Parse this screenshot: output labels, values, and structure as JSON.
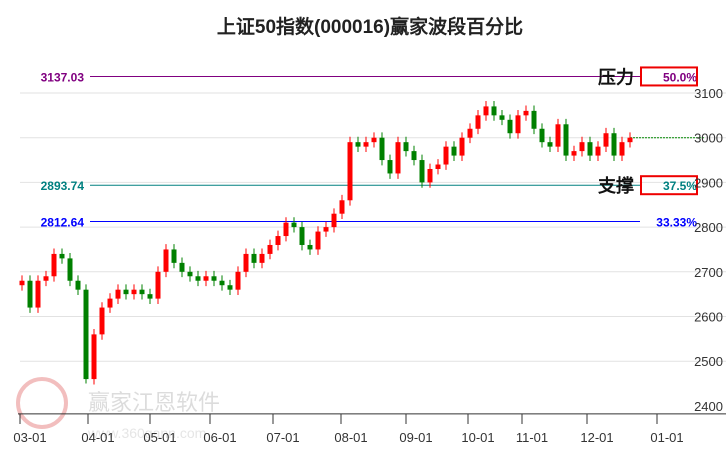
{
  "chart_data": {
    "type": "candlestick",
    "title": "上证50指数(000016)赢家波段百分比",
    "y_ticks": [
      3100,
      3000,
      2900,
      2800,
      2700,
      2600,
      2500,
      2400
    ],
    "ylim": [
      2400,
      3130
    ],
    "x_ticks": [
      "03-01",
      "04-01",
      "05-01",
      "06-01",
      "07-01",
      "08-01",
      "09-01",
      "10-01",
      "11-01",
      "12-01",
      "01-01"
    ],
    "closes": [
      2680,
      2620,
      2680,
      2690,
      2740,
      2730,
      2680,
      2660,
      2460,
      2560,
      2620,
      2640,
      2660,
      2650,
      2660,
      2650,
      2640,
      2700,
      2750,
      2720,
      2700,
      2690,
      2680,
      2690,
      2680,
      2670,
      2660,
      2700,
      2740,
      2720,
      2740,
      2760,
      2780,
      2810,
      2800,
      2760,
      2750,
      2790,
      2800,
      2830,
      2860,
      2990,
      2980,
      2990,
      3000,
      2950,
      2920,
      2990,
      2970,
      2950,
      2900,
      2930,
      2940,
      2980,
      2960,
      3000,
      3020,
      3050,
      3070,
      3050,
      3040,
      3010,
      3050,
      3060,
      3020,
      2990,
      2980,
      3030,
      2960,
      2970,
      2990,
      2960,
      2980,
      3010,
      2960,
      2990,
      3000
    ],
    "levels": [
      {
        "value": "3137.03",
        "price": 3137.03,
        "pct": "50.0%",
        "tag": "压力",
        "color": "#800080"
      },
      {
        "value": "2893.74",
        "price": 2893.74,
        "pct": "37.5%",
        "tag": "支撑",
        "color": "#008080"
      },
      {
        "value": "2812.64",
        "price": 2812.64,
        "pct": "33.33%",
        "tag": "",
        "color": "#0000ff"
      }
    ],
    "last_price": 3000,
    "colors": {
      "up": "#ff0000",
      "down": "#008000"
    }
  },
  "watermark": {
    "name": "赢家江恩软件",
    "url": "www.360gann.com",
    "seal": "江赢恩家"
  }
}
